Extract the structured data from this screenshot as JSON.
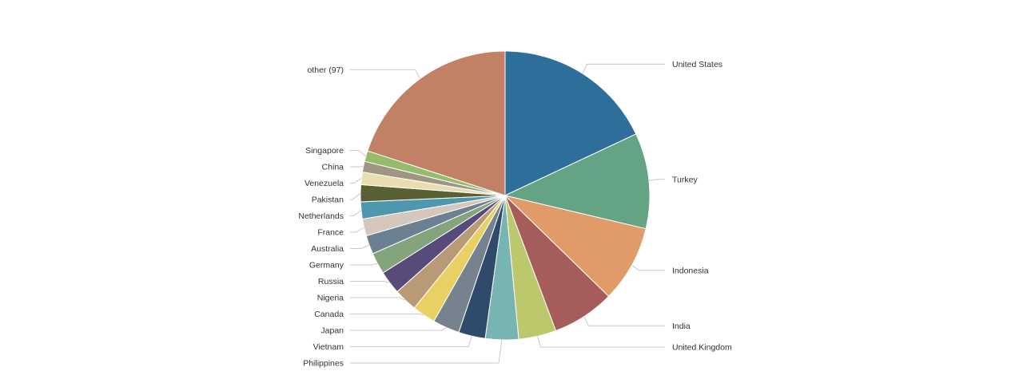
{
  "chart_data": {
    "type": "pie",
    "start_angle_deg": 0,
    "direction": "clockwise",
    "slices": [
      {
        "label": "United States",
        "value": 18.0,
        "color": "#2e6e9b"
      },
      {
        "label": "Turkey",
        "value": 10.7,
        "color": "#65a385"
      },
      {
        "label": "Indonesia",
        "value": 8.6,
        "color": "#e09b68"
      },
      {
        "label": "India",
        "value": 7.0,
        "color": "#a75c5c"
      },
      {
        "label": "United Kingdom",
        "value": 4.2,
        "color": "#bdc76b"
      },
      {
        "label": "Philippines",
        "value": 3.7,
        "color": "#78b4b1"
      },
      {
        "label": "Vietnam",
        "value": 3.0,
        "color": "#2f4a6b"
      },
      {
        "label": "Japan",
        "value": 3.0,
        "color": "#76838f"
      },
      {
        "label": "Canada",
        "value": 2.6,
        "color": "#e8d064"
      },
      {
        "label": "Nigeria",
        "value": 2.6,
        "color": "#b89a76"
      },
      {
        "label": "Russia",
        "value": 2.6,
        "color": "#594a7c"
      },
      {
        "label": "Germany",
        "value": 2.4,
        "color": "#84a47c"
      },
      {
        "label": "Australia",
        "value": 2.1,
        "color": "#6b8090"
      },
      {
        "label": "France",
        "value": 1.9,
        "color": "#d6c7bd"
      },
      {
        "label": "Netherlands",
        "value": 1.9,
        "color": "#4e97ae"
      },
      {
        "label": "Pakistan",
        "value": 1.9,
        "color": "#596134"
      },
      {
        "label": "Venezuela",
        "value": 1.4,
        "color": "#e8deaf"
      },
      {
        "label": "China",
        "value": 1.2,
        "color": "#a09585"
      },
      {
        "label": "Singapore",
        "value": 1.2,
        "color": "#94bc6c"
      },
      {
        "label": "other (97)",
        "value": 20.0,
        "color": "#c28164"
      }
    ]
  }
}
